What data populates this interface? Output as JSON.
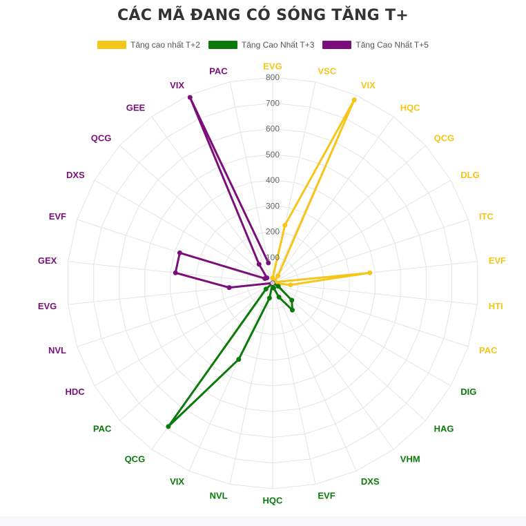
{
  "chart_data": {
    "type": "radar",
    "title": "CÁC MÃ ĐANG CÓ SÓNG TĂNG T+",
    "r_ticks": [
      100,
      200,
      300,
      400,
      500,
      600,
      700,
      800
    ],
    "rlim": [
      0,
      800
    ],
    "grid": true,
    "legend_position": "top",
    "labels": [
      "EVG",
      "VSC",
      "VIX",
      "HQC",
      "QCG",
      "DLG",
      "ITC",
      "EVF",
      "HTI",
      "PAC",
      "DIG",
      "HAG",
      "VHM",
      "DXS",
      "EVF",
      "HQC",
      "NVL",
      "VIX",
      "QCG",
      "PAC",
      "HDC",
      "NVL",
      "EVG",
      "GEX",
      "EVF",
      "DXS",
      "QCG",
      "GEE",
      "VIX",
      "PAC"
    ],
    "label_colors": [
      "#f5c518",
      "#f5c518",
      "#f5c518",
      "#f5c518",
      "#f5c518",
      "#f5c518",
      "#f5c518",
      "#f5c518",
      "#f5c518",
      "#f5c518",
      "#0b7a0b",
      "#0b7a0b",
      "#0b7a0b",
      "#0b7a0b",
      "#0b7a0b",
      "#0b7a0b",
      "#0b7a0b",
      "#0b7a0b",
      "#0b7a0b",
      "#0b7a0b",
      "#7b0e7b",
      "#7b0e7b",
      "#7b0e7b",
      "#7b0e7b",
      "#7b0e7b",
      "#7b0e7b",
      "#7b0e7b",
      "#7b0e7b",
      "#7b0e7b",
      "#7b0e7b"
    ],
    "series": [
      {
        "name": "Tăng cao nhất T+2",
        "color": "#f5c518",
        "values": [
          20,
          230,
          780,
          35,
          10,
          10,
          10,
          380,
          70,
          0,
          null,
          null,
          null,
          null,
          null,
          null,
          null,
          null,
          null,
          null,
          null,
          null,
          null,
          null,
          null,
          null,
          null,
          null,
          null,
          null
        ]
      },
      {
        "name": "Tăng Cao Nhất T+3",
        "color": "#0b7a0b",
        "values": [
          null,
          null,
          null,
          null,
          null,
          null,
          null,
          null,
          null,
          0,
          25,
          100,
          130,
          60,
          20,
          0,
          60,
          325,
          690,
          35,
          0,
          null,
          null,
          null,
          null,
          null,
          null,
          null,
          null,
          null
        ]
      },
      {
        "name": "Tăng Cao Nhất T+5",
        "color": "#7b0e7b",
        "values": [
          null,
          null,
          null,
          null,
          null,
          null,
          null,
          null,
          null,
          null,
          null,
          null,
          null,
          null,
          null,
          null,
          null,
          null,
          null,
          null,
          0,
          0,
          170,
          380,
          380,
          35,
          30,
          90,
          790,
          80
        ]
      }
    ]
  }
}
